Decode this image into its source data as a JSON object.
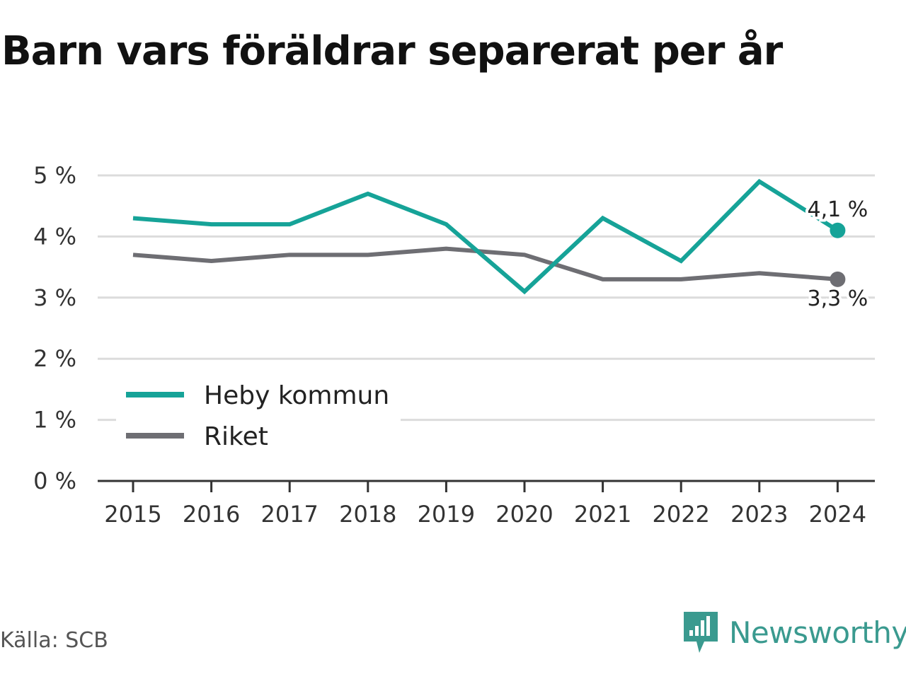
{
  "chart_data": {
    "type": "line",
    "title": "Barn vars föräldrar separerat per år",
    "x": [
      2015,
      2016,
      2017,
      2018,
      2019,
      2020,
      2021,
      2022,
      2023,
      2024
    ],
    "series": [
      {
        "name": "Heby kommun",
        "color": "#16a398",
        "values": [
          4.3,
          4.2,
          4.2,
          4.7,
          4.2,
          3.1,
          4.3,
          3.6,
          4.9,
          4.1
        ],
        "end_label": "4,1 %"
      },
      {
        "name": "Riket",
        "color": "#6e6e73",
        "values": [
          3.7,
          3.6,
          3.7,
          3.7,
          3.8,
          3.7,
          3.3,
          3.3,
          3.4,
          3.3
        ],
        "end_label": "3,3 %"
      }
    ],
    "ylim": [
      0,
      5
    ],
    "yticks": [
      0,
      1,
      2,
      3,
      4,
      5
    ],
    "ytick_labels": [
      "0 %",
      "1 %",
      "2 %",
      "3 %",
      "4 %",
      "5 %"
    ],
    "grid": true,
    "legend_position": "bottom-left"
  },
  "source": "Källa: SCB",
  "brand": {
    "name": "Newsworthy",
    "icon": "newsworthy-logo-icon",
    "color": "#3a9a8f"
  }
}
